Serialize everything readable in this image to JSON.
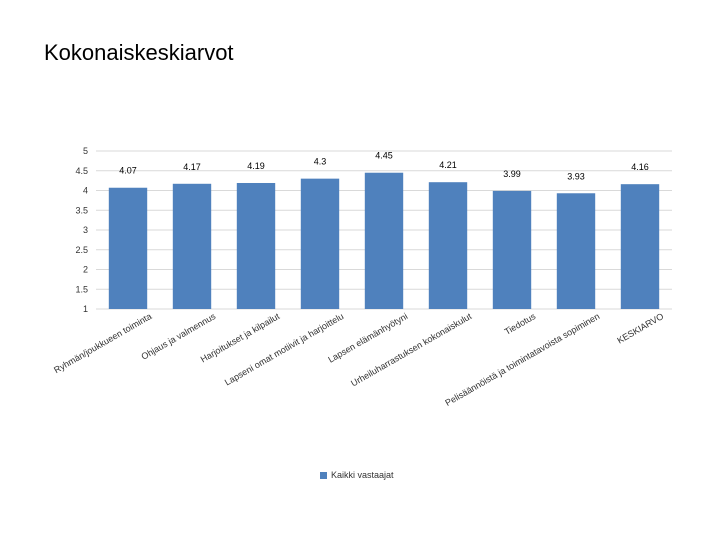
{
  "page": {
    "title": "Kokonaiskeskiarvot"
  },
  "chart_data": {
    "type": "bar",
    "title": "",
    "xlabel": "",
    "ylabel": "",
    "ylim": [
      1,
      5
    ],
    "yticks": [
      "5",
      "4.5",
      "4",
      "3.5",
      "3",
      "2.5",
      "2",
      "1.5",
      "1"
    ],
    "grid": true,
    "legend_position": "bottom",
    "color": "#4F81BD",
    "categories": [
      "Ryhmän/joukkueen toiminta",
      "Ohjaus ja valmennus",
      "Harjoitukset ja kilpailut",
      "Lapseni omat motiivit ja harjoittelu",
      "Lapsen elämänhyötyni",
      "Urheiluharrastuksen kokonaiskulut",
      "Tiedotus",
      "Pelisäännöistä ja toimintatavoista sopiminen",
      "KESKIARVO"
    ],
    "series": [
      {
        "name": "Kaikki vastaajat",
        "values": [
          4.07,
          4.17,
          4.19,
          4.3,
          4.45,
          4.21,
          3.99,
          3.93,
          4.16
        ],
        "labels": [
          "4.07",
          "4.17",
          "4.19",
          "4.3",
          "4.45",
          "4.21",
          "3.99",
          "3.93",
          "4.16"
        ]
      }
    ]
  }
}
